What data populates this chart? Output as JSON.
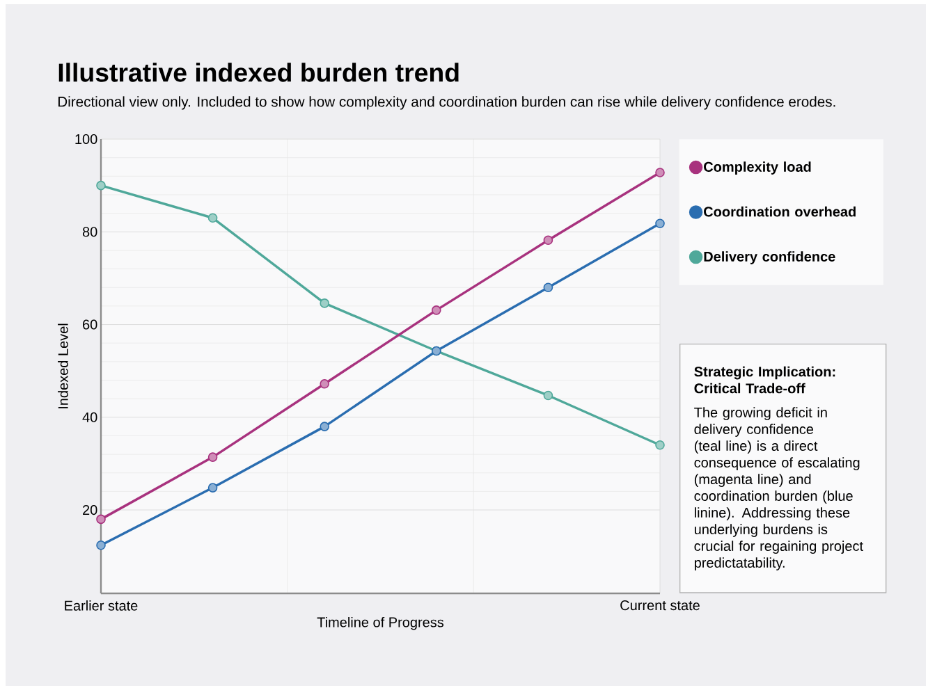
{
  "chart_data": {
    "type": "line",
    "title": "Illustrative indexed burden trend",
    "subtitle": "Directional view only. Included to show how complexity and coordination burden can rise while delivery confidence erodes.",
    "xlabel": "Timeline of Progress",
    "ylabel": "Indexed Level",
    "categories": [
      "Earlier state",
      null,
      null,
      null,
      null,
      "Current state"
    ],
    "series": [
      {
        "name": "Complexity load",
        "color": "#a8327e",
        "values": [
          18,
          31.4,
          47.2,
          63.1,
          78.2,
          92.8
        ]
      },
      {
        "name": "Coordination overhead",
        "color": "#2a6db0",
        "values": [
          12.4,
          24.8,
          38,
          54.3,
          68,
          81.8
        ]
      },
      {
        "name": "Delivery confidence",
        "color": "#4fa89a",
        "values": [
          90,
          83,
          64.6,
          54.3,
          44.7,
          34
        ]
      }
    ],
    "ylim": [
      2,
      100
    ],
    "yticks": [
      20,
      40,
      60,
      80,
      100
    ],
    "grid": true,
    "legend": "top right",
    "marker": "circle",
    "line_style": "solid",
    "annotations": [
      "Strategic Implication: Critical Trade-off",
      "The growing deficit in delivery confidence (teal line) is a direct consequence of escalating (magenta line) and coordination burden (blue linine). Addressing these underlying burdens is crucial for regaining project predictatability."
    ]
  }
}
